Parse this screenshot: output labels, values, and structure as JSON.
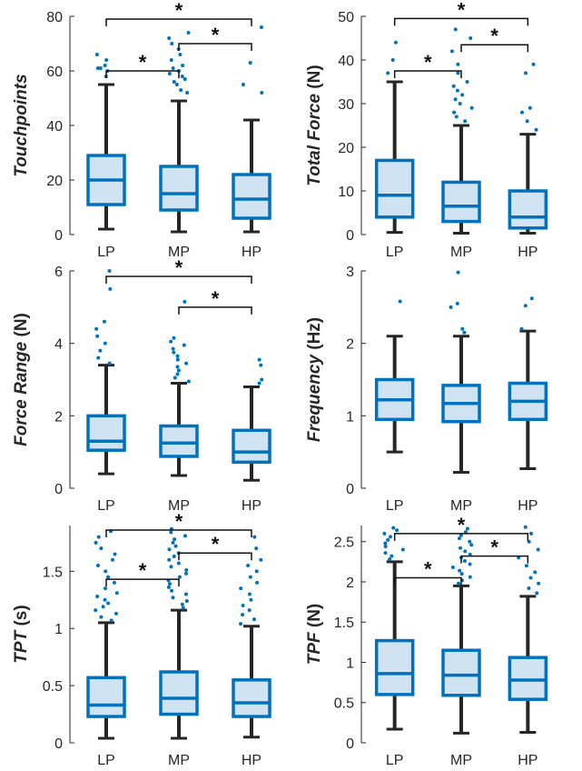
{
  "colors": {
    "box_edge": "#0072BD",
    "box_fill": "#CFE3F3",
    "whisker": "#262626",
    "outlier": "#0072BD",
    "axis": "#262626",
    "bracket": "#111111"
  },
  "chart_data": [
    {
      "type": "box",
      "ylabel_main": "Touchpoints",
      "ylabel_unit": "",
      "ylim": [
        0,
        80
      ],
      "yticks": [
        "0",
        "20",
        "40",
        "60",
        "80"
      ],
      "categories": [
        "LP",
        "MP",
        "HP"
      ],
      "boxes": [
        {
          "q1": 11,
          "median": 20,
          "q3": 29,
          "whisker_low": 2,
          "whisker_high": 55,
          "outliers": [
            58,
            60,
            61,
            61,
            62,
            64,
            66
          ]
        },
        {
          "q1": 9,
          "median": 15,
          "q3": 25,
          "whisker_low": 1,
          "whisker_high": 49,
          "outliers": [
            52,
            53,
            55,
            56,
            57,
            58,
            59,
            60,
            61,
            62,
            64,
            66,
            68,
            70,
            72,
            74
          ]
        },
        {
          "q1": 6,
          "median": 13,
          "q3": 22,
          "whisker_low": 1,
          "whisker_high": 42,
          "outliers": [
            52,
            55,
            63,
            76
          ]
        }
      ],
      "significance": [
        {
          "from": 0,
          "to": 2,
          "level": 79,
          "label": "*"
        },
        {
          "from": 1,
          "to": 2,
          "level": 70,
          "label": "*"
        },
        {
          "from": 0,
          "to": 1,
          "level": 60,
          "label": "*"
        }
      ]
    },
    {
      "type": "box",
      "ylabel_main": "Total Force",
      "ylabel_unit": " (N)",
      "ylim": [
        0,
        50
      ],
      "yticks": [
        "0",
        "10",
        "20",
        "30",
        "40",
        "50"
      ],
      "categories": [
        "LP",
        "MP",
        "HP"
      ],
      "boxes": [
        {
          "q1": 4,
          "median": 9,
          "q3": 17,
          "whisker_low": 0.5,
          "whisker_high": 35,
          "outliers": [
            37,
            40,
            44
          ]
        },
        {
          "q1": 3,
          "median": 6.5,
          "q3": 12,
          "whisker_low": 0.3,
          "whisker_high": 25,
          "outliers": [
            26,
            27,
            28,
            29,
            30,
            31,
            32,
            33,
            34,
            35,
            37,
            39,
            42,
            45,
            47
          ]
        },
        {
          "q1": 1.5,
          "median": 4,
          "q3": 10,
          "whisker_low": 0.3,
          "whisker_high": 23,
          "outliers": [
            24,
            26,
            28,
            29,
            37,
            39
          ]
        }
      ],
      "significance": [
        {
          "from": 0,
          "to": 2,
          "level": 49.5,
          "label": "*"
        },
        {
          "from": 1,
          "to": 2,
          "level": 43.5,
          "label": "*"
        },
        {
          "from": 0,
          "to": 1,
          "level": 37.5,
          "label": "*"
        }
      ]
    },
    {
      "type": "box",
      "ylabel_main": "Force Range",
      "ylabel_unit": " (N)",
      "ylim": [
        0,
        6
      ],
      "yticks": [
        "0",
        "2",
        "4",
        "6"
      ],
      "categories": [
        "LP",
        "MP",
        "HP"
      ],
      "boxes": [
        {
          "q1": 1.05,
          "median": 1.3,
          "q3": 2.0,
          "whisker_low": 0.4,
          "whisker_high": 3.4,
          "outliers": [
            3.45,
            3.6,
            3.8,
            4.0,
            4.2,
            4.4,
            4.6,
            5.5,
            6.0
          ]
        },
        {
          "q1": 0.88,
          "median": 1.25,
          "q3": 1.72,
          "whisker_low": 0.35,
          "whisker_high": 2.9,
          "outliers": [
            2.95,
            3.05,
            3.15,
            3.25,
            3.35,
            3.45,
            3.55,
            3.65,
            3.75,
            3.85,
            3.95,
            4.05,
            4.15,
            5.15
          ]
        },
        {
          "q1": 0.72,
          "median": 1.0,
          "q3": 1.6,
          "whisker_low": 0.22,
          "whisker_high": 2.8,
          "outliers": [
            2.9,
            3.0,
            3.4,
            3.55
          ]
        }
      ],
      "significance": [
        {
          "from": 0,
          "to": 2,
          "level": 5.85,
          "label": "*"
        },
        {
          "from": 1,
          "to": 2,
          "level": 5.0,
          "label": "*"
        }
      ]
    },
    {
      "type": "box",
      "ylabel_main": "Frequency",
      "ylabel_unit": " (Hz)",
      "ylim": [
        0,
        3
      ],
      "yticks": [
        "0",
        "1",
        "2",
        "3"
      ],
      "categories": [
        "LP",
        "MP",
        "HP"
      ],
      "boxes": [
        {
          "q1": 0.95,
          "median": 1.22,
          "q3": 1.5,
          "whisker_low": 0.5,
          "whisker_high": 2.1,
          "outliers": [
            2.58
          ]
        },
        {
          "q1": 0.92,
          "median": 1.17,
          "q3": 1.42,
          "whisker_low": 0.22,
          "whisker_high": 2.1,
          "outliers": [
            2.15,
            2.2,
            2.5,
            2.55,
            2.98
          ]
        },
        {
          "q1": 0.95,
          "median": 1.2,
          "q3": 1.45,
          "whisker_low": 0.27,
          "whisker_high": 2.17,
          "outliers": [
            2.2,
            2.52,
            2.62
          ]
        }
      ],
      "significance": []
    },
    {
      "type": "box",
      "ylabel_main": "TPT",
      "ylabel_unit": " (s)",
      "ylim": [
        0,
        1.9
      ],
      "yticks": [
        "0",
        "0.5",
        "1",
        "1.5"
      ],
      "ytick_values": [
        0,
        0.5,
        1,
        1.5
      ],
      "categories": [
        "LP",
        "MP",
        "HP"
      ],
      "boxes": [
        {
          "q1": 0.23,
          "median": 0.33,
          "q3": 0.57,
          "whisker_low": 0.04,
          "whisker_high": 1.05,
          "outliers": [
            1.07,
            1.1,
            1.13,
            1.16,
            1.19,
            1.22,
            1.25,
            1.28,
            1.31,
            1.35,
            1.4,
            1.45,
            1.5,
            1.55,
            1.6,
            1.65,
            1.7,
            1.75,
            1.8,
            1.85
          ]
        },
        {
          "q1": 0.25,
          "median": 0.39,
          "q3": 0.62,
          "whisker_low": 0.04,
          "whisker_high": 1.16,
          "outliers": [
            1.18,
            1.21,
            1.24,
            1.27,
            1.3,
            1.33,
            1.36,
            1.39,
            1.42,
            1.45,
            1.48,
            1.51,
            1.54,
            1.57,
            1.6,
            1.63,
            1.66,
            1.69,
            1.72,
            1.75,
            1.78,
            1.81,
            1.84,
            1.87
          ]
        },
        {
          "q1": 0.23,
          "median": 0.35,
          "q3": 0.55,
          "whisker_low": 0.05,
          "whisker_high": 1.02,
          "outliers": [
            1.04,
            1.08,
            1.12,
            1.16,
            1.2,
            1.25,
            1.3,
            1.35,
            1.4,
            1.45,
            1.5,
            1.55,
            1.6,
            1.7,
            1.8
          ]
        }
      ],
      "significance": [
        {
          "from": 0,
          "to": 2,
          "level": 1.86,
          "label": "*"
        },
        {
          "from": 1,
          "to": 2,
          "level": 1.66,
          "label": "*"
        },
        {
          "from": 0,
          "to": 1,
          "level": 1.43,
          "label": "*"
        }
      ]
    },
    {
      "type": "box",
      "ylabel_main": "TPF",
      "ylabel_unit": " (N)",
      "ylim": [
        0,
        2.7
      ],
      "yticks": [
        "0",
        "0.5",
        "1",
        "1.5",
        "2",
        "2.5"
      ],
      "ytick_values": [
        0,
        0.5,
        1,
        1.5,
        2,
        2.5
      ],
      "categories": [
        "LP",
        "MP",
        "HP"
      ],
      "boxes": [
        {
          "q1": 0.6,
          "median": 0.86,
          "q3": 1.27,
          "whisker_low": 0.17,
          "whisker_high": 2.25,
          "outliers": [
            2.28,
            2.32,
            2.36,
            2.4,
            2.44,
            2.48,
            2.52,
            2.56,
            2.6,
            2.64,
            2.67
          ]
        },
        {
          "q1": 0.59,
          "median": 0.84,
          "q3": 1.15,
          "whisker_low": 0.12,
          "whisker_high": 1.95,
          "outliers": [
            1.98,
            2.02,
            2.06,
            2.1,
            2.14,
            2.18,
            2.22,
            2.26,
            2.3,
            2.34,
            2.38,
            2.42,
            2.46,
            2.5,
            2.54,
            2.58,
            2.62,
            2.66
          ]
        },
        {
          "q1": 0.54,
          "median": 0.78,
          "q3": 1.06,
          "whisker_low": 0.13,
          "whisker_high": 1.82,
          "outliers": [
            1.86,
            1.92,
            1.98,
            2.05,
            2.12,
            2.2,
            2.3,
            2.4,
            2.5,
            2.6,
            2.68
          ]
        }
      ],
      "significance": [
        {
          "from": 0,
          "to": 2,
          "level": 2.6,
          "label": "*"
        },
        {
          "from": 1,
          "to": 2,
          "level": 2.32,
          "label": "*"
        },
        {
          "from": 0,
          "to": 1,
          "level": 2.05,
          "label": "*"
        }
      ]
    }
  ]
}
